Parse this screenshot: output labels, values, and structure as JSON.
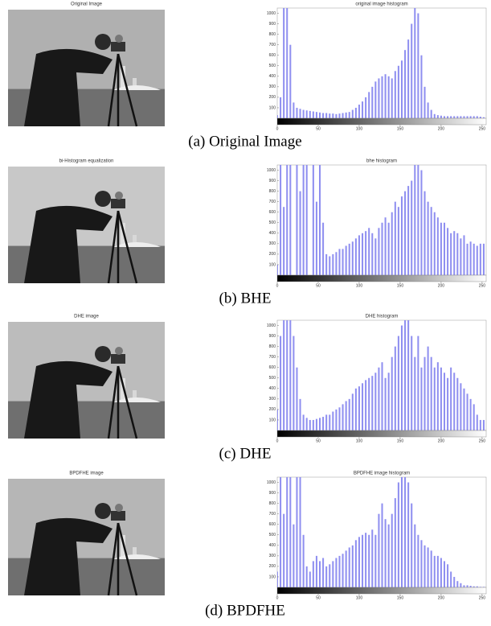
{
  "figure": {
    "captions": [
      "(a) Original Image",
      "(b) BHE",
      "(c) DHE",
      "(d) BPDFHE"
    ],
    "image_titles": [
      "Original Image",
      "bi-Histogram equalization",
      "DHE image",
      "BPDFHE image"
    ]
  },
  "chart_data": [
    {
      "type": "bar",
      "title": "original image histogram",
      "color": "#8f8ff0",
      "xlim": [
        0,
        255
      ],
      "ylim": [
        0,
        1050
      ],
      "xticks": [
        0,
        50,
        100,
        150,
        200,
        250
      ],
      "yticks": [
        100,
        200,
        300,
        400,
        500,
        600,
        700,
        800,
        900,
        1000
      ],
      "x": [
        0,
        4,
        8,
        12,
        16,
        20,
        24,
        28,
        32,
        36,
        40,
        44,
        48,
        52,
        56,
        60,
        64,
        68,
        72,
        76,
        80,
        84,
        88,
        92,
        96,
        100,
        104,
        108,
        112,
        116,
        120,
        124,
        128,
        132,
        136,
        140,
        144,
        148,
        152,
        156,
        160,
        164,
        168,
        172,
        176,
        180,
        184,
        188,
        192,
        196,
        200,
        204,
        208,
        212,
        216,
        220,
        224,
        228,
        232,
        236,
        240,
        244,
        248,
        252
      ],
      "values": [
        30,
        200,
        1100,
        1100,
        700,
        150,
        100,
        90,
        80,
        75,
        70,
        65,
        60,
        55,
        50,
        50,
        45,
        45,
        40,
        45,
        50,
        55,
        60,
        80,
        100,
        130,
        160,
        200,
        250,
        300,
        350,
        380,
        400,
        420,
        400,
        380,
        450,
        500,
        550,
        650,
        750,
        900,
        1100,
        1000,
        600,
        300,
        150,
        80,
        40,
        30,
        25,
        20,
        20,
        20,
        20,
        20,
        20,
        20,
        20,
        20,
        20,
        20,
        15,
        10
      ]
    },
    {
      "type": "bar",
      "title": "bhe histogram",
      "color": "#8f8ff0",
      "xlim": [
        0,
        255
      ],
      "ylim": [
        0,
        1050
      ],
      "xticks": [
        0,
        50,
        100,
        150,
        200,
        250
      ],
      "yticks": [
        100,
        200,
        300,
        400,
        500,
        600,
        700,
        800,
        900,
        1000
      ],
      "x": [
        0,
        4,
        8,
        12,
        16,
        20,
        24,
        28,
        32,
        36,
        40,
        44,
        48,
        52,
        56,
        60,
        64,
        68,
        72,
        76,
        80,
        84,
        88,
        92,
        96,
        100,
        104,
        108,
        112,
        116,
        120,
        124,
        128,
        132,
        136,
        140,
        144,
        148,
        152,
        156,
        160,
        164,
        168,
        172,
        176,
        180,
        184,
        188,
        192,
        196,
        200,
        204,
        208,
        212,
        216,
        220,
        224,
        228,
        232,
        236,
        240,
        244,
        248,
        252
      ],
      "values": [
        100,
        1100,
        650,
        1100,
        1100,
        0,
        1100,
        800,
        1100,
        1100,
        0,
        1100,
        700,
        1100,
        500,
        200,
        180,
        200,
        220,
        250,
        250,
        280,
        300,
        320,
        350,
        380,
        400,
        420,
        450,
        400,
        350,
        450,
        500,
        550,
        500,
        600,
        700,
        650,
        750,
        800,
        850,
        900,
        1100,
        1100,
        1000,
        800,
        700,
        650,
        600,
        550,
        500,
        500,
        450,
        400,
        420,
        400,
        350,
        380,
        300,
        320,
        300,
        280,
        300,
        300
      ]
    },
    {
      "type": "bar",
      "title": "DHE histogram",
      "color": "#8f8ff0",
      "xlim": [
        0,
        255
      ],
      "ylim": [
        0,
        1050
      ],
      "xticks": [
        0,
        50,
        100,
        150,
        200,
        250
      ],
      "yticks": [
        100,
        200,
        300,
        400,
        500,
        600,
        700,
        800,
        900,
        1000
      ],
      "x": [
        0,
        4,
        8,
        12,
        16,
        20,
        24,
        28,
        32,
        36,
        40,
        44,
        48,
        52,
        56,
        60,
        64,
        68,
        72,
        76,
        80,
        84,
        88,
        92,
        96,
        100,
        104,
        108,
        112,
        116,
        120,
        124,
        128,
        132,
        136,
        140,
        144,
        148,
        152,
        156,
        160,
        164,
        168,
        172,
        176,
        180,
        184,
        188,
        192,
        196,
        200,
        204,
        208,
        212,
        216,
        220,
        224,
        228,
        232,
        236,
        240,
        244,
        248,
        252
      ],
      "values": [
        200,
        900,
        1100,
        1100,
        1100,
        900,
        600,
        300,
        150,
        120,
        100,
        100,
        110,
        120,
        130,
        150,
        150,
        180,
        200,
        220,
        250,
        280,
        300,
        350,
        400,
        420,
        450,
        480,
        500,
        520,
        550,
        600,
        650,
        500,
        550,
        700,
        800,
        900,
        1000,
        1100,
        1100,
        900,
        700,
        900,
        600,
        700,
        800,
        700,
        600,
        650,
        600,
        550,
        500,
        600,
        550,
        500,
        450,
        400,
        350,
        300,
        250,
        150,
        100,
        100
      ]
    },
    {
      "type": "bar",
      "title": "BPDFHE image histogram",
      "color": "#8f8ff0",
      "xlim": [
        0,
        255
      ],
      "ylim": [
        0,
        1050
      ],
      "xticks": [
        0,
        50,
        100,
        150,
        200,
        250
      ],
      "yticks": [
        100,
        200,
        300,
        400,
        500,
        600,
        700,
        800,
        900,
        1000
      ],
      "x": [
        0,
        4,
        8,
        12,
        16,
        20,
        24,
        28,
        32,
        36,
        40,
        44,
        48,
        52,
        56,
        60,
        64,
        68,
        72,
        76,
        80,
        84,
        88,
        92,
        96,
        100,
        104,
        108,
        112,
        116,
        120,
        124,
        128,
        132,
        136,
        140,
        144,
        148,
        152,
        156,
        160,
        164,
        168,
        172,
        176,
        180,
        184,
        188,
        192,
        196,
        200,
        204,
        208,
        212,
        216,
        220,
        224,
        228,
        232,
        236,
        240,
        244,
        248,
        252
      ],
      "values": [
        150,
        1100,
        700,
        1100,
        1100,
        600,
        1100,
        1100,
        500,
        200,
        150,
        250,
        300,
        250,
        280,
        200,
        220,
        250,
        280,
        300,
        320,
        350,
        380,
        400,
        450,
        480,
        500,
        520,
        500,
        550,
        500,
        700,
        800,
        650,
        600,
        700,
        850,
        1000,
        1100,
        1100,
        1000,
        800,
        600,
        500,
        450,
        400,
        380,
        350,
        300,
        300,
        280,
        250,
        220,
        150,
        100,
        60,
        40,
        20,
        20,
        15,
        10,
        10,
        5,
        5
      ]
    }
  ]
}
